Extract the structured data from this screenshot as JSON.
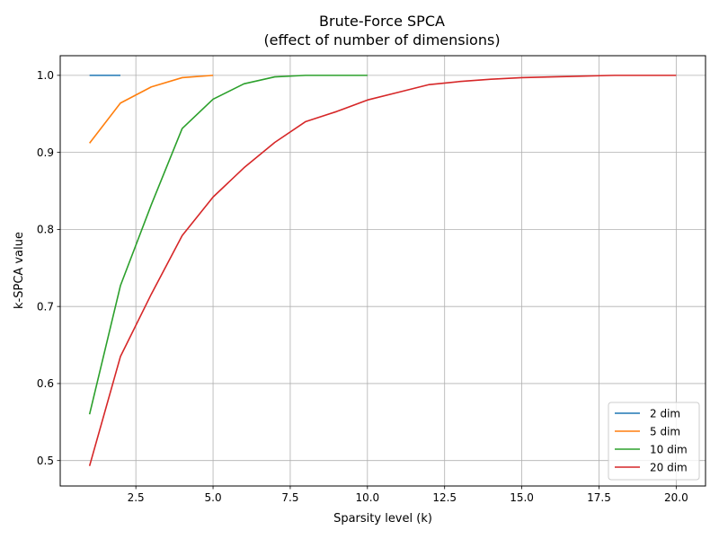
{
  "chart_data": {
    "type": "line",
    "title": "Brute-Force SPCA",
    "subtitle": "(effect of number of dimensions)",
    "xlabel": "Sparsity level (k)",
    "ylabel": "k-SPCA value",
    "xlim": [
      0.05,
      20.95
    ],
    "ylim": [
      0.467,
      1.0255
    ],
    "xticks": [
      "2.5",
      "5.0",
      "7.5",
      "10.0",
      "12.5",
      "15.0",
      "17.5",
      "20.0"
    ],
    "yticks": [
      "0.5",
      "0.6",
      "0.7",
      "0.8",
      "0.9",
      "1.0"
    ],
    "grid": true,
    "legend_position": "lower-right",
    "series": [
      {
        "name": "2 dim",
        "color": "#1f77b4",
        "x": [
          1,
          2
        ],
        "y": [
          1.0,
          1.0
        ]
      },
      {
        "name": "5 dim",
        "color": "#ff7f0e",
        "x": [
          1,
          2,
          3,
          4,
          5
        ],
        "y": [
          0.912,
          0.964,
          0.985,
          0.997,
          1.0
        ]
      },
      {
        "name": "10 dim",
        "color": "#2ca02c",
        "x": [
          1,
          2,
          3,
          4,
          5,
          6,
          7,
          8,
          9,
          10
        ],
        "y": [
          0.56,
          0.727,
          0.832,
          0.931,
          0.969,
          0.989,
          0.998,
          1.0,
          1.0,
          1.0
        ]
      },
      {
        "name": "20 dim",
        "color": "#d62728",
        "x": [
          1,
          2,
          3,
          4,
          5,
          6,
          7,
          8,
          9,
          10,
          11,
          12,
          13,
          14,
          15,
          16,
          17,
          18,
          19,
          20
        ],
        "y": [
          0.493,
          0.635,
          0.716,
          0.792,
          0.842,
          0.88,
          0.913,
          0.94,
          0.953,
          0.968,
          0.978,
          0.988,
          0.992,
          0.995,
          0.997,
          0.998,
          0.999,
          1.0,
          1.0,
          1.0
        ]
      }
    ]
  }
}
